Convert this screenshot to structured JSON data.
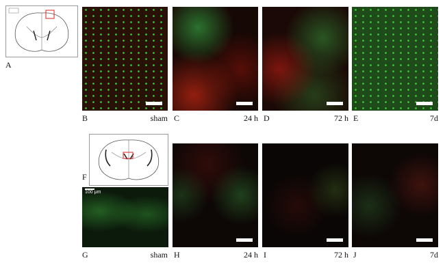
{
  "figure": {
    "panels": [
      {
        "letter": "A"
      },
      {
        "letter": "B",
        "condition": "sham"
      },
      {
        "letter": "C",
        "condition": "24 h"
      },
      {
        "letter": "D",
        "condition": "72 h"
      },
      {
        "letter": "E",
        "condition": "7d"
      },
      {
        "letter": "F"
      },
      {
        "letter": "G",
        "condition": "sham",
        "scale_label": "100 μm"
      },
      {
        "letter": "H",
        "condition": "24 h"
      },
      {
        "letter": "I",
        "condition": "72 h"
      },
      {
        "letter": "J",
        "condition": "7d"
      }
    ]
  }
}
